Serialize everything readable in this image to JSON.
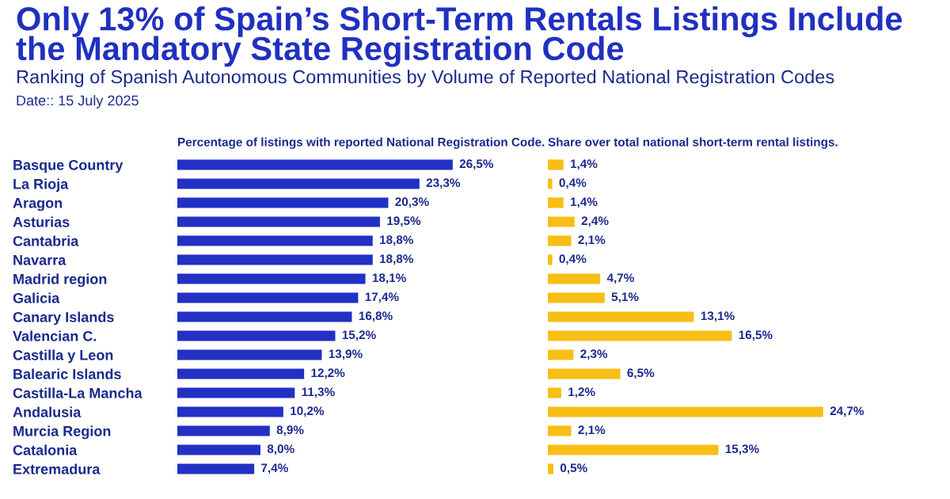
{
  "chart_data": [
    {
      "type": "bar",
      "orientation": "horizontal",
      "title": "Only 13% of Spain’s Short-Term Rentals Listings Include the Mandatory State Registration Code",
      "subtitle": "Ranking of Spanish Autonomous Communities by Volume of Reported National Registration Codes",
      "annotations": [
        "Date:: 15 July 2025"
      ],
      "xlabel": "Percentage of listings with reported National Registration Code.",
      "tick_labels": "y",
      "categories": [
        "Basque Country",
        "La Rioja",
        "Aragon",
        "Asturias",
        "Cantabria",
        "Navarra",
        "Madrid region",
        "Galicia",
        "Canary Islands",
        "Valencian C.",
        "Castilla y Leon",
        "Balearic Islands",
        "Castilla-La Mancha",
        "Andalusia",
        "Murcia Region",
        "Catalonia",
        "Extremadura"
      ],
      "series": [
        {
          "color": "#2230c4",
          "values": [
            26.5,
            23.3,
            20.3,
            19.5,
            18.8,
            18.8,
            18.1,
            17.4,
            16.8,
            15.2,
            13.9,
            12.2,
            11.3,
            10.2,
            8.9,
            8.0,
            7.4
          ],
          "value_labels": [
            "26,5%",
            "23,3%",
            "20,3%",
            "19,5%",
            "18,8%",
            "18,8%",
            "18,1%",
            "17,4%",
            "16,8%",
            "15,2%",
            "13,9%",
            "12,2%",
            "11,3%",
            "10,2%",
            "8,9%",
            "8,0%",
            "7,4%"
          ]
        }
      ]
    },
    {
      "type": "bar",
      "orientation": "horizontal",
      "xlabel": "Share over total national short-term rental listings.",
      "tick_labels": "y",
      "categories": [
        null,
        null,
        null,
        null,
        null,
        null,
        null,
        null,
        null,
        null,
        null,
        null,
        null,
        null,
        null,
        null,
        null
      ],
      "series": [
        {
          "color": "#f7be16",
          "values": [
            1.4,
            0.4,
            1.4,
            2.4,
            2.1,
            0.4,
            4.7,
            5.1,
            13.1,
            16.5,
            2.3,
            6.5,
            1.2,
            24.7,
            2.1,
            15.3,
            0.5
          ],
          "value_labels": [
            "1,4%",
            "0,4%",
            "1,4%",
            "2,4%",
            "2,1%",
            "0,4%",
            "4,7%",
            "5,1%",
            "13,1%",
            "16,5%",
            "2,3%",
            "6,5%",
            "1,2%",
            "24,7%",
            "2,1%",
            "15,3%",
            "0,5%"
          ]
        }
      ]
    }
  ]
}
